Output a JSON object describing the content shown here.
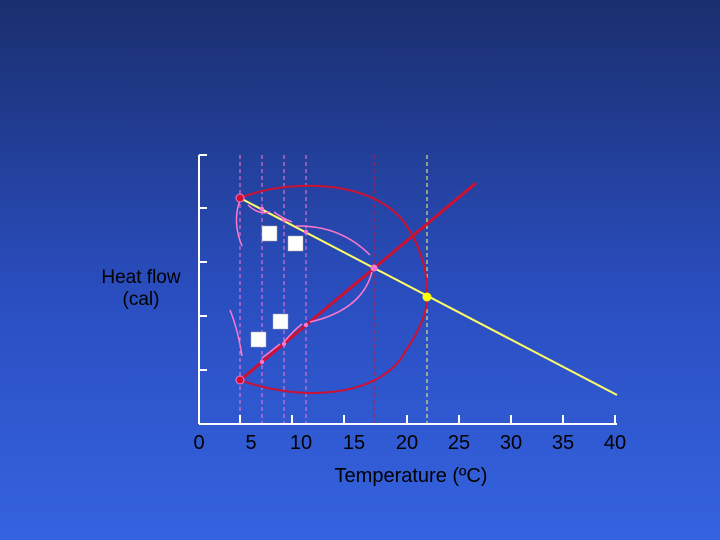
{
  "y_axis_label": [
    "Heat flow",
    "(cal)"
  ],
  "x_axis_label": "Temperature (ºC)",
  "x_ticks": [
    "0",
    "5",
    "10",
    "15",
    "20",
    "25",
    "30",
    "35",
    "40"
  ],
  "colors": {
    "axis": "#ffffff",
    "cooling_line": "#ffff66",
    "warming_line": "#cc1133",
    "equilibrium_marker": "#ffff00",
    "steps": "#ff77cc",
    "tick_text": "#000000"
  },
  "chart_data": {
    "type": "line",
    "xlabel": "Temperature (ºC)",
    "ylabel": "Heat flow (cal)",
    "xlim": [
      0,
      40
    ],
    "x_ticks": [
      0,
      5,
      10,
      15,
      20,
      25,
      30,
      35,
      40
    ],
    "series": [
      {
        "points": [
          [
            4,
            5
          ],
          [
            40,
            0.5
          ]
        ]
      },
      {
        "points": [
          [
            4,
            1.3
          ],
          [
            26,
            4.2
          ]
        ]
      }
    ],
    "equilibrium": {
      "x": 21,
      "y": 2.7
    },
    "dashed_guides_x": [
      4,
      6,
      8,
      10,
      16,
      21
    ]
  }
}
